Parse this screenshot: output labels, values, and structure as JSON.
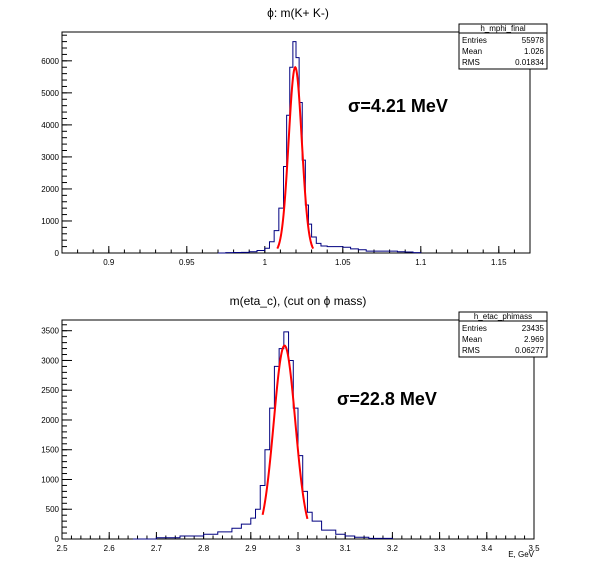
{
  "chart_data": [
    {
      "type": "histogram",
      "title": "ϕ: m(K+ K-)",
      "xlabel": "",
      "ylabel": "",
      "xlim": [
        0.87,
        1.17
      ],
      "ylim": [
        0,
        6900
      ],
      "xticks": [
        0.9,
        0.95,
        1,
        1.05,
        1.1,
        1.15
      ],
      "xtick_labels": [
        "0.9",
        "0.95",
        "1",
        "1.05",
        "1.1",
        "1.15"
      ],
      "yticks": [
        0,
        1000,
        2000,
        3000,
        4000,
        5000,
        6000
      ],
      "ytick_labels": [
        "0",
        "1000",
        "2000",
        "3000",
        "4000",
        "5000",
        "6000"
      ],
      "grid": false,
      "histogram_color": "#000080",
      "fit_color": "#ff0000",
      "histogram": {
        "x": [
          0.97,
          0.975,
          0.98,
          0.985,
          0.99,
          0.995,
          1.0,
          1.003,
          1.006,
          1.009,
          1.012,
          1.014,
          1.016,
          1.018,
          1.02,
          1.022,
          1.024,
          1.026,
          1.028,
          1.03,
          1.033,
          1.036,
          1.04,
          1.045,
          1.05,
          1.055,
          1.06,
          1.065,
          1.07,
          1.075,
          1.08,
          1.085,
          1.09,
          1.095,
          1.1
        ],
        "y": [
          0,
          10,
          15,
          20,
          40,
          80,
          150,
          350,
          700,
          1400,
          2700,
          4300,
          5800,
          6600,
          6100,
          4700,
          2900,
          1500,
          900,
          500,
          300,
          220,
          200,
          200,
          180,
          130,
          100,
          60,
          60,
          60,
          60,
          40,
          30,
          10,
          0
        ]
      },
      "fit": {
        "mean": 1.0195,
        "sigma": 0.00421,
        "amplitude": 5800,
        "x_range": [
          1.008,
          1.031
        ]
      },
      "stats_box": {
        "name": "h_mphi_final",
        "rows": [
          {
            "label": "Entries",
            "value": "55978"
          },
          {
            "label": "Mean",
            "value": "1.026"
          },
          {
            "label": "RMS",
            "value": "0.01834"
          }
        ]
      },
      "annotation": "σ=4.21 MeV"
    },
    {
      "type": "histogram",
      "title": "m(eta_c), (cut on ϕ mass)",
      "xlabel": "E, GeV",
      "ylabel": "",
      "xlim": [
        2.5,
        3.5
      ],
      "ylim": [
        0,
        3680
      ],
      "xticks": [
        2.5,
        2.6,
        2.7,
        2.8,
        2.9,
        3.0,
        3.1,
        3.2,
        3.3,
        3.4,
        3.5
      ],
      "xtick_labels": [
        "2.5",
        "2.6",
        "2.7",
        "2.8",
        "2.9",
        "3",
        "3.1",
        "3.2",
        "3.3",
        "3.4",
        "3.5"
      ],
      "yticks": [
        0,
        500,
        1000,
        1500,
        2000,
        2500,
        3000,
        3500
      ],
      "ytick_labels": [
        "0",
        "500",
        "1000",
        "1500",
        "2000",
        "2500",
        "3000",
        "3500"
      ],
      "grid": false,
      "histogram_color": "#000080",
      "fit_color": "#ff0000",
      "histogram": {
        "x": [
          2.65,
          2.7,
          2.75,
          2.8,
          2.83,
          2.86,
          2.88,
          2.9,
          2.91,
          2.92,
          2.93,
          2.94,
          2.95,
          2.96,
          2.97,
          2.98,
          2.99,
          3.0,
          3.01,
          3.02,
          3.03,
          3.05,
          3.08,
          3.1,
          3.12,
          3.15,
          3.2
        ],
        "y": [
          0,
          20,
          50,
          80,
          120,
          180,
          250,
          350,
          500,
          900,
          1500,
          2200,
          2900,
          3200,
          3480,
          3000,
          2200,
          1400,
          800,
          450,
          300,
          150,
          80,
          50,
          30,
          10,
          0
        ]
      },
      "fit": {
        "mean": 2.9715,
        "sigma": 0.0228,
        "amplitude": 3250,
        "x_range": [
          2.925,
          3.02
        ]
      },
      "stats_box": {
        "name": "h_etac_phimass",
        "rows": [
          {
            "label": "Entries",
            "value": "23435"
          },
          {
            "label": "Mean",
            "value": "2.969"
          },
          {
            "label": "RMS",
            "value": "0.06277"
          }
        ]
      },
      "annotation": "σ=22.8 MeV"
    }
  ]
}
